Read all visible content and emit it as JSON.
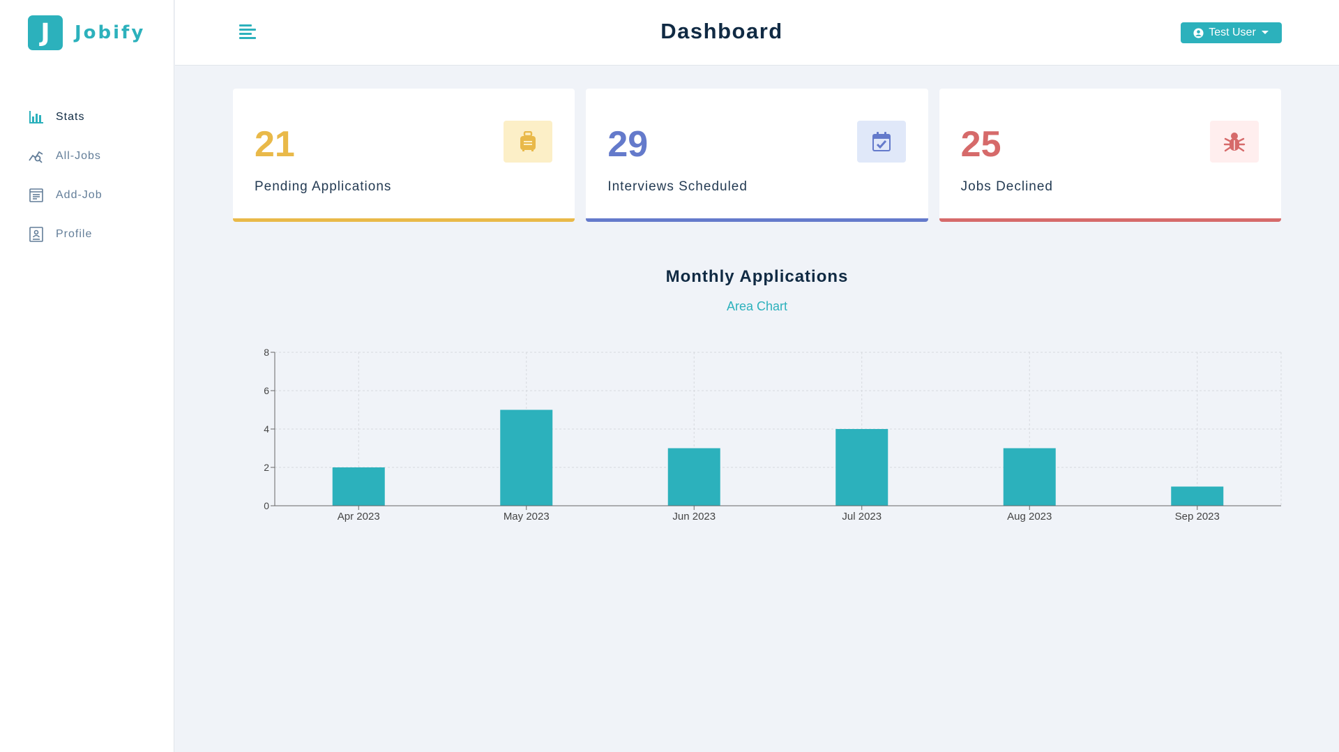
{
  "app": {
    "logo_letter": "J",
    "name": "Jobify"
  },
  "sidebar": {
    "items": [
      {
        "label": "Stats",
        "icon": "bar-chart-icon",
        "active": true
      },
      {
        "label": "All-Jobs",
        "icon": "query-stats-icon",
        "active": false
      },
      {
        "label": "Add-Job",
        "icon": "form-icon",
        "active": false
      },
      {
        "label": "Profile",
        "icon": "profile-card-icon",
        "active": false
      }
    ]
  },
  "header": {
    "title": "Dashboard",
    "user_label": "Test User",
    "user_icon": "user-circle-icon",
    "caret_icon": "caret-down-icon",
    "toggle_icon": "menu-align-left-icon"
  },
  "stats": [
    {
      "count": "21",
      "label": "Pending Applications",
      "icon": "suitcase-icon",
      "color": "#e9b949",
      "bg": "#fcefc7"
    },
    {
      "count": "29",
      "label": "Interviews Scheduled",
      "icon": "calendar-check-icon",
      "color": "#647acb",
      "bg": "#e0e8f9"
    },
    {
      "count": "25",
      "label": "Jobs Declined",
      "icon": "bug-icon",
      "color": "#d66a6a",
      "bg": "#ffeeee"
    }
  ],
  "chart_section": {
    "title": "Monthly Applications",
    "toggle_label": "Area Chart"
  },
  "chart_data": {
    "type": "bar",
    "categories": [
      "Apr 2023",
      "May 2023",
      "Jun 2023",
      "Jul 2023",
      "Aug 2023",
      "Sep 2023"
    ],
    "values": [
      2,
      5,
      3,
      4,
      3,
      1
    ],
    "ylim": [
      0,
      8
    ],
    "yticks": [
      0,
      2,
      4,
      6,
      8
    ],
    "grid": true,
    "color": "#2cb1bc"
  }
}
